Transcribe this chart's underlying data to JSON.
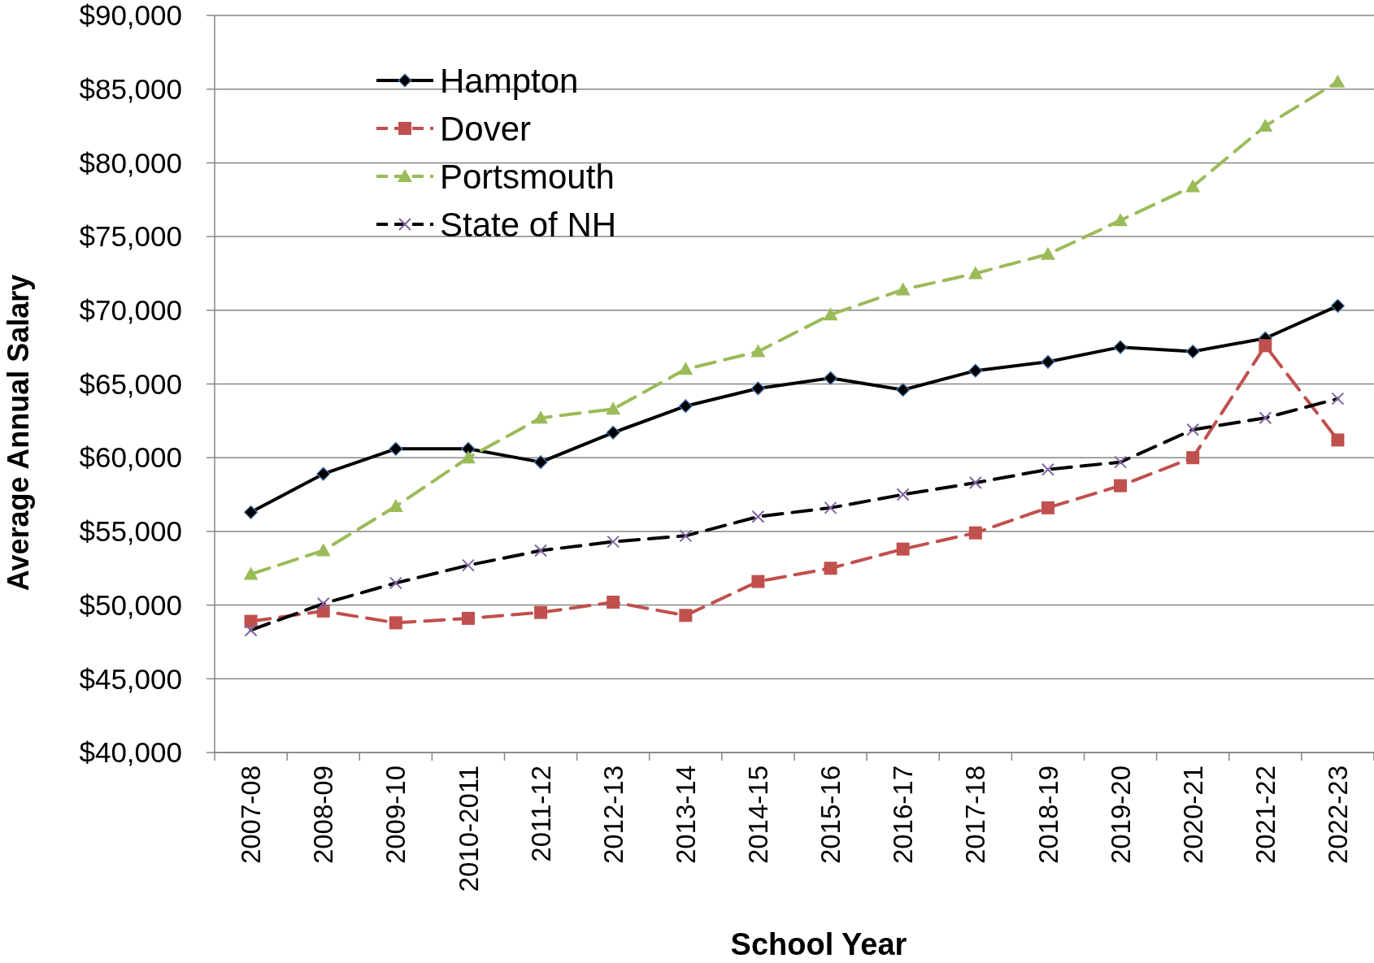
{
  "chart_data": {
    "type": "line",
    "xlabel": "School Year",
    "ylabel": "Average Annual Salary",
    "categories": [
      "2007-08",
      "2008-09",
      "2009-10",
      "2010-2011",
      "2011-12",
      "2012-13",
      "2013-14",
      "2014-15",
      "2015-16",
      "2016-17",
      "2017-18",
      "2018-19",
      "2019-20",
      "2020-21",
      "2021-22",
      "2022-23"
    ],
    "series": [
      {
        "name": "Hampton",
        "color": "#000000",
        "marker": "diamond",
        "line_style": "solid",
        "values": [
          56300,
          58900,
          60600,
          60600,
          59700,
          61700,
          63500,
          64700,
          65400,
          64600,
          65900,
          66500,
          67500,
          67200,
          68100,
          70300
        ]
      },
      {
        "name": "Dover",
        "color": "#c0504d",
        "marker": "square",
        "line_style": "dashed",
        "values": [
          48900,
          49600,
          48800,
          49100,
          49500,
          50200,
          49300,
          51600,
          52500,
          53800,
          54900,
          56600,
          58100,
          60000,
          67600,
          61200
        ]
      },
      {
        "name": "Portsmouth",
        "color": "#9bbb59",
        "marker": "triangle",
        "line_style": "dashed",
        "values": [
          52100,
          53700,
          56700,
          60000,
          62700,
          63300,
          66000,
          67200,
          69700,
          71400,
          72500,
          73800,
          76100,
          78400,
          82500,
          85500
        ]
      },
      {
        "name": "State of NH",
        "color": "#000000",
        "marker": "cross",
        "line_style": "dashed",
        "values": [
          48300,
          50100,
          51500,
          52700,
          53700,
          54300,
          54700,
          56000,
          56600,
          57500,
          58300,
          59200,
          59700,
          61900,
          62700,
          64000
        ]
      }
    ],
    "ylim": [
      40000,
      90000
    ],
    "yticks": [
      {
        "value": 40000,
        "label": "$40,000"
      },
      {
        "value": 45000,
        "label": "$45,000"
      },
      {
        "value": 50000,
        "label": "$50,000"
      },
      {
        "value": 55000,
        "label": "$55,000"
      },
      {
        "value": 60000,
        "label": "$60,000"
      },
      {
        "value": 65000,
        "label": "$65,000"
      },
      {
        "value": 70000,
        "label": "$70,000"
      },
      {
        "value": 75000,
        "label": "$75,000"
      },
      {
        "value": 80000,
        "label": "$80,000"
      },
      {
        "value": 85000,
        "label": "$85,000"
      },
      {
        "value": 90000,
        "label": "$90,000"
      }
    ],
    "grid": "y",
    "legend": "top left"
  }
}
